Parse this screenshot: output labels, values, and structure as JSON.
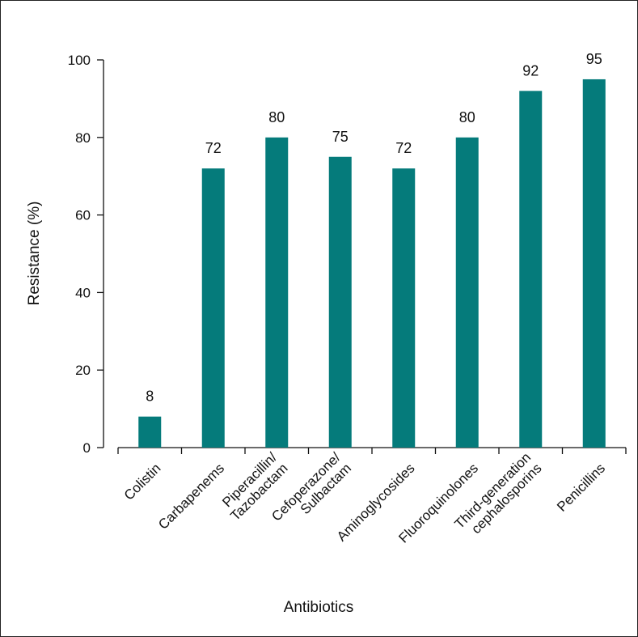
{
  "chart_data": {
    "type": "bar",
    "title": "",
    "xlabel": "Antibiotics",
    "ylabel": "Resistance (%)",
    "ylim": [
      0,
      100
    ],
    "yticks": [
      0,
      20,
      40,
      60,
      80,
      100
    ],
    "grid": false,
    "legend": "none",
    "categories": [
      [
        "Colistin"
      ],
      [
        "Carbapenems"
      ],
      [
        "Piperacillin/",
        "Tazobactam"
      ],
      [
        "Cefoperazone/",
        "Sulbactam"
      ],
      [
        "Aminoglycosides"
      ],
      [
        "Fluoroquinolones"
      ],
      [
        "Third-generation",
        "cephalosporins"
      ],
      [
        "Penicillins"
      ]
    ],
    "values": [
      8,
      72,
      80,
      75,
      72,
      80,
      92,
      95
    ],
    "bar_color": "#057b7b"
  }
}
